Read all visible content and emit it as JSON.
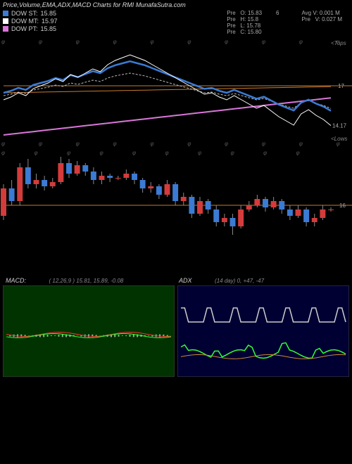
{
  "title": "Price,Volume,EMA,ADX,MACD Charts for RMI MunafaSutra.com",
  "dow": {
    "st": {
      "label": "DOW ST:",
      "value": "15.85",
      "color": "#3b7bd4"
    },
    "mt": {
      "label": "DOW MT:",
      "value": "15.97",
      "color": "#ffffff"
    },
    "pt": {
      "label": "DOW PT:",
      "value": "15.85",
      "color": "#d976d9"
    }
  },
  "prev": {
    "o": "Pre   O: 15.83",
    "h": "Pre   H: 15.8",
    "l": "Pre   L: 15.78",
    "c": "Pre   C: 15.80"
  },
  "avg": {
    "v": "Avg V: 0.001 M",
    "pv": "Pre   V: 0.027 M",
    "six": "6"
  },
  "upper_chart": {
    "label_top": "<Tops",
    "label_bot": "<Lows",
    "ref17": "17",
    "ref1417": "14.17",
    "line_color": "#c97a2e",
    "blue": "#3b7bd4",
    "white": "#ffffff",
    "magenta": "#d976d9",
    "orange": "#c97a2e",
    "gray": "#888888"
  },
  "candle_chart": {
    "ref16": "16",
    "line_color": "#c97a2e",
    "up_color": "#d43b3b",
    "down_color": "#3b7bd4",
    "wick_color": "#888",
    "candles": [
      {
        "o": 15.5,
        "c": 16.8,
        "h": 17.0,
        "l": 15.3,
        "t": "u"
      },
      {
        "o": 16.8,
        "c": 16.2,
        "h": 17.2,
        "l": 16.0,
        "t": "d"
      },
      {
        "o": 16.2,
        "c": 17.8,
        "h": 18.0,
        "l": 16.0,
        "t": "u"
      },
      {
        "o": 17.8,
        "c": 17.0,
        "h": 18.2,
        "l": 16.8,
        "t": "d"
      },
      {
        "o": 17.0,
        "c": 17.2,
        "h": 17.5,
        "l": 16.8,
        "t": "u"
      },
      {
        "o": 17.2,
        "c": 16.9,
        "h": 17.4,
        "l": 16.7,
        "t": "d"
      },
      {
        "o": 16.9,
        "c": 17.1,
        "h": 17.3,
        "l": 16.8,
        "t": "u"
      },
      {
        "o": 17.1,
        "c": 18.0,
        "h": 18.3,
        "l": 17.0,
        "t": "u"
      },
      {
        "o": 18.0,
        "c": 17.5,
        "h": 18.2,
        "l": 17.3,
        "t": "d"
      },
      {
        "o": 17.5,
        "c": 17.9,
        "h": 18.1,
        "l": 17.4,
        "t": "u"
      },
      {
        "o": 17.9,
        "c": 17.6,
        "h": 18.0,
        "l": 17.4,
        "t": "d"
      },
      {
        "o": 17.6,
        "c": 17.2,
        "h": 17.8,
        "l": 17.0,
        "t": "d"
      },
      {
        "o": 17.2,
        "c": 17.4,
        "h": 17.6,
        "l": 17.0,
        "t": "u"
      },
      {
        "o": 17.4,
        "c": 17.3,
        "h": 17.5,
        "l": 17.1,
        "t": "d"
      },
      {
        "o": 17.3,
        "c": 17.3,
        "h": 17.4,
        "l": 17.2,
        "t": "u"
      },
      {
        "o": 17.3,
        "c": 17.5,
        "h": 17.7,
        "l": 17.2,
        "t": "u"
      },
      {
        "o": 17.5,
        "c": 17.2,
        "h": 17.6,
        "l": 17.0,
        "t": "d"
      },
      {
        "o": 17.2,
        "c": 16.8,
        "h": 17.3,
        "l": 16.6,
        "t": "d"
      },
      {
        "o": 16.8,
        "c": 16.9,
        "h": 17.1,
        "l": 16.6,
        "t": "u"
      },
      {
        "o": 16.9,
        "c": 16.5,
        "h": 17.0,
        "l": 16.3,
        "t": "d"
      },
      {
        "o": 16.5,
        "c": 17.0,
        "h": 17.2,
        "l": 16.4,
        "t": "u"
      },
      {
        "o": 17.0,
        "c": 16.2,
        "h": 17.1,
        "l": 16.0,
        "t": "d"
      },
      {
        "o": 16.2,
        "c": 16.4,
        "h": 16.6,
        "l": 16.0,
        "t": "u"
      },
      {
        "o": 16.4,
        "c": 15.6,
        "h": 16.5,
        "l": 15.4,
        "t": "d"
      },
      {
        "o": 15.6,
        "c": 16.2,
        "h": 16.4,
        "l": 15.5,
        "t": "u"
      },
      {
        "o": 16.2,
        "c": 15.8,
        "h": 16.3,
        "l": 15.6,
        "t": "d"
      },
      {
        "o": 15.8,
        "c": 15.2,
        "h": 16.0,
        "l": 15.0,
        "t": "d"
      },
      {
        "o": 15.2,
        "c": 15.4,
        "h": 15.6,
        "l": 15.0,
        "t": "u"
      },
      {
        "o": 15.4,
        "c": 15.0,
        "h": 15.6,
        "l": 14.6,
        "t": "d"
      },
      {
        "o": 15.0,
        "c": 15.8,
        "h": 16.0,
        "l": 14.9,
        "t": "u"
      },
      {
        "o": 15.8,
        "c": 16.0,
        "h": 16.2,
        "l": 15.7,
        "t": "u"
      },
      {
        "o": 16.0,
        "c": 16.3,
        "h": 16.5,
        "l": 15.9,
        "t": "u"
      },
      {
        "o": 16.3,
        "c": 15.9,
        "h": 16.4,
        "l": 15.7,
        "t": "d"
      },
      {
        "o": 15.9,
        "c": 16.2,
        "h": 16.4,
        "l": 15.8,
        "t": "u"
      },
      {
        "o": 16.2,
        "c": 15.8,
        "h": 16.3,
        "l": 15.6,
        "t": "d"
      },
      {
        "o": 15.8,
        "c": 15.5,
        "h": 16.0,
        "l": 15.3,
        "t": "d"
      },
      {
        "o": 15.5,
        "c": 15.8,
        "h": 16.0,
        "l": 15.4,
        "t": "u"
      },
      {
        "o": 15.8,
        "c": 15.2,
        "h": 15.9,
        "l": 15.0,
        "t": "d"
      },
      {
        "o": 15.2,
        "c": 15.4,
        "h": 15.6,
        "l": 15.0,
        "t": "u"
      },
      {
        "o": 15.4,
        "c": 15.8,
        "h": 16.0,
        "l": 15.3,
        "t": "u"
      },
      {
        "o": 15.8,
        "c": 15.8,
        "h": 15.9,
        "l": 15.7,
        "t": "u"
      }
    ]
  },
  "macd": {
    "label": "MACD:",
    "params": "( 12,26,9 ) 15.81,  15.89,  -0.08",
    "bg": "#003300",
    "line1_color": "#ff3333",
    "line2_color": "#33ff33",
    "bar_color": "#ffffff"
  },
  "adx": {
    "label": "ADX",
    "params": "(14   day) 0,  +47,  -47",
    "bg": "#000033",
    "di_plus_color": "#33ff33",
    "di_minus_color": "#cccccc",
    "adx_color": "#cc8833"
  }
}
